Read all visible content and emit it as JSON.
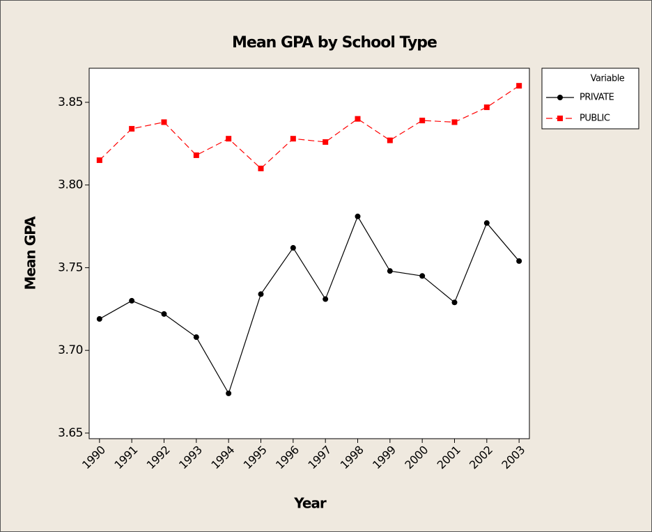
{
  "chart_data": {
    "type": "line",
    "title": "Mean GPA by School Type",
    "x_label": "Year",
    "y_label": "Mean GPA",
    "x": [
      1990,
      1991,
      1992,
      1993,
      1994,
      1995,
      1996,
      1997,
      1998,
      1999,
      2000,
      2001,
      2002,
      2003
    ],
    "xlim": [
      1989.68,
      2003.32
    ],
    "xticks": [
      1990,
      1991,
      1992,
      1993,
      1994,
      1995,
      1996,
      1997,
      1998,
      1999,
      2000,
      2001,
      2002,
      2003
    ],
    "ylim": [
      3.6466,
      3.8706
    ],
    "yticks": [
      3.65,
      {
        "value": 3.7,
        "label": "3.70"
      },
      3.75,
      {
        "value": 3.8,
        "label": "3.80"
      },
      3.85
    ],
    "legend_title": "Variable",
    "legend_position": "right",
    "series": [
      {
        "name": "PRIVATE",
        "color": "#000000",
        "marker": "circle",
        "dashed": false,
        "values": [
          3.719,
          3.73,
          3.722,
          3.708,
          3.674,
          3.734,
          3.762,
          3.731,
          3.781,
          3.748,
          3.745,
          3.729,
          3.777,
          3.754
        ]
      },
      {
        "name": "PUBLIC",
        "color": "#ff0000",
        "marker": "square",
        "dashed": true,
        "values": [
          3.815,
          3.834,
          3.838,
          3.818,
          3.828,
          3.81,
          3.828,
          3.826,
          3.84,
          3.827,
          3.839,
          3.838,
          3.847,
          3.86
        ]
      }
    ]
  }
}
